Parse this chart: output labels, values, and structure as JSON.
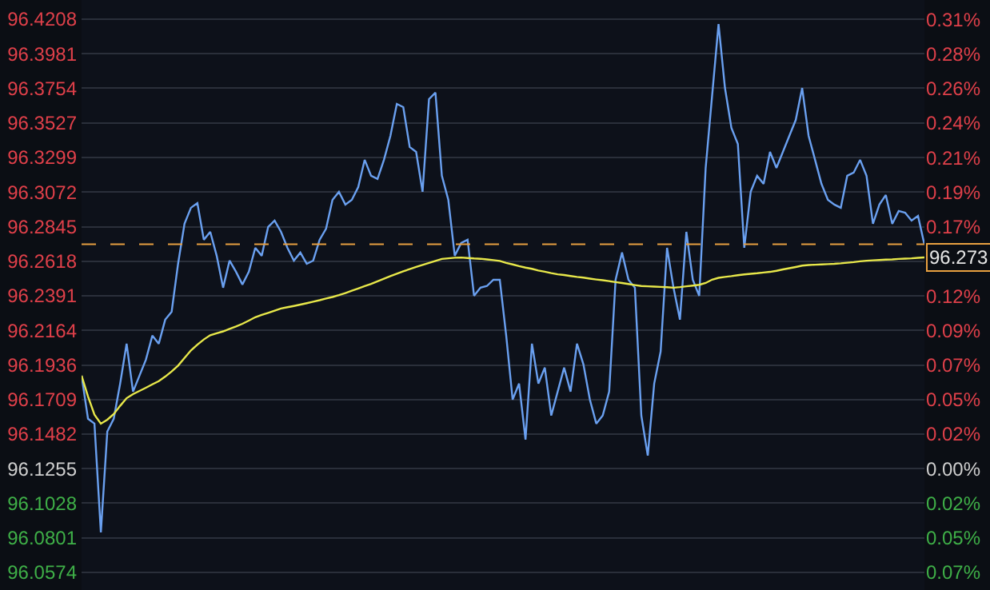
{
  "chart_data": {
    "type": "line",
    "categories": [
      null,
      null,
      null,
      null,
      null,
      null,
      null,
      null,
      null,
      null,
      null,
      null,
      null,
      null,
      null,
      null,
      null,
      null,
      null,
      null,
      null,
      null,
      null,
      null,
      null,
      null,
      null,
      null,
      null,
      null,
      null,
      null,
      null,
      null,
      null,
      null,
      null,
      null,
      null,
      null,
      null,
      null,
      null,
      null,
      null,
      null,
      null,
      null,
      null,
      null,
      null,
      null,
      null,
      null,
      null,
      null,
      null,
      null,
      null,
      null,
      null,
      null,
      null,
      null,
      null,
      null,
      null,
      null,
      null,
      null,
      null,
      null,
      null,
      null,
      null,
      null,
      null,
      null,
      null,
      null,
      null,
      null,
      null,
      null,
      null,
      null,
      null,
      null,
      null,
      null,
      null,
      null,
      null,
      null,
      null,
      null,
      null,
      null,
      null,
      null,
      null,
      null,
      null,
      null,
      null,
      null,
      null,
      null,
      null,
      null,
      null,
      null,
      null,
      null,
      null,
      null,
      null,
      null,
      null,
      null,
      null,
      null,
      null,
      null,
      null,
      null,
      null,
      null,
      null,
      null,
      null,
      null
    ],
    "series": [
      {
        "color": "#6aa0f0",
        "values": [
          96.1866,
          96.1583,
          96.1551,
          96.0837,
          96.1499,
          96.1583,
          96.1814,
          96.2076,
          96.1761,
          96.1866,
          96.1971,
          96.2129,
          96.2076,
          96.2234,
          96.2286,
          96.2601,
          96.2864,
          96.2969,
          96.3,
          96.2759,
          96.2811,
          96.2654,
          96.2444,
          96.2622,
          96.2549,
          96.2465,
          96.2549,
          96.2706,
          96.2654,
          96.2843,
          96.2885,
          96.2811,
          96.2706,
          96.2622,
          96.2675,
          96.2601,
          96.2622,
          96.2759,
          96.2832,
          96.3021,
          96.3074,
          96.299,
          96.3021,
          96.3105,
          96.3284,
          96.3179,
          96.3158,
          96.3284,
          96.3441,
          96.3651,
          96.363,
          96.3368,
          96.3336,
          96.3074,
          96.3683,
          96.3725,
          96.3179,
          96.3021,
          96.2654,
          96.2738,
          96.2759,
          96.2391,
          96.2444,
          96.2455,
          96.2496,
          96.2496,
          96.2129,
          96.1709,
          96.1814,
          96.1446,
          96.2076,
          96.1814,
          96.1919,
          96.1604,
          96.1761,
          96.1919,
          96.1761,
          96.2076,
          96.194,
          96.1709,
          96.1551,
          96.1604,
          96.1761,
          96.2496,
          96.2675,
          96.2496,
          96.2444,
          96.1604,
          96.1341,
          96.1814,
          96.2024,
          96.2706,
          96.2444,
          96.2234,
          96.2811,
          96.2496,
          96.2391,
          96.3231,
          96.3704,
          96.4176,
          96.3756,
          96.3494,
          96.3389,
          96.2706,
          96.3074,
          96.3179,
          96.3126,
          96.3336,
          96.3231,
          96.3336,
          96.3441,
          96.3546,
          96.3756,
          96.3441,
          96.3284,
          96.3126,
          96.3021,
          96.299,
          96.2969,
          96.3179,
          96.32,
          96.3284,
          96.3179,
          96.2864,
          96.299,
          96.3053,
          96.2864,
          96.2948,
          96.2937,
          96.2885,
          96.2916,
          96.2727
        ]
      },
      {
        "color": "#e8e84a",
        "values": [
          96.1866,
          96.173,
          96.161,
          96.1551,
          96.1577,
          96.1614,
          96.1668,
          96.1718,
          96.1745,
          96.1766,
          96.1787,
          96.1809,
          96.183,
          96.186,
          96.1894,
          96.1932,
          96.1982,
          96.2032,
          96.207,
          96.2104,
          96.2132,
          96.2145,
          96.2157,
          96.2173,
          96.2189,
          96.2207,
          96.2228,
          96.225,
          96.2265,
          96.2279,
          96.2293,
          96.2307,
          96.2316,
          96.2324,
          96.2333,
          96.2342,
          96.2352,
          96.2362,
          96.2373,
          96.2383,
          96.2395,
          96.2409,
          96.2424,
          96.2439,
          96.2454,
          96.2469,
          96.2486,
          96.2503,
          96.252,
          96.2536,
          96.2552,
          96.2566,
          96.258,
          96.2594,
          96.2607,
          96.262,
          96.2633,
          96.2637,
          96.2641,
          96.2642,
          96.2639,
          96.2636,
          96.2634,
          96.263,
          96.2625,
          96.262,
          96.2607,
          96.2597,
          96.2586,
          96.2576,
          96.2568,
          96.2557,
          96.2549,
          96.254,
          96.2532,
          96.2527,
          96.2521,
          96.2515,
          96.251,
          96.2504,
          96.2498,
          96.2493,
          96.2487,
          96.2481,
          96.2475,
          96.2468,
          96.2461,
          96.2455,
          96.2453,
          96.2451,
          96.2449,
          96.2447,
          96.2444,
          96.2448,
          96.2453,
          96.2458,
          96.2463,
          96.2475,
          96.2497,
          96.2509,
          96.2515,
          96.252,
          96.2526,
          96.2531,
          96.2535,
          96.2539,
          96.2544,
          96.2548,
          96.2555,
          96.2564,
          96.2572,
          96.258,
          96.2589,
          96.2593,
          96.2595,
          96.2597,
          96.2599,
          96.2601,
          96.2604,
          96.2608,
          96.2612,
          96.2617,
          96.2621,
          96.2624,
          96.2626,
          96.2628,
          96.263,
          96.2633,
          96.2635,
          96.2637,
          96.264,
          96.2643
        ]
      }
    ],
    "ylim": [
      96.0458,
      96.4334
    ],
    "yticks": [
      96.4208,
      96.3981,
      96.3754,
      96.3527,
      96.3299,
      96.3072,
      96.2845,
      96.2618,
      96.2391,
      96.2164,
      96.1936,
      96.1709,
      96.1482,
      96.1255,
      96.1028,
      96.0801,
      96.0574
    ],
    "y2lim": [
      -0.0829,
      0.3203
    ],
    "y2ticks": [
      {
        "value": 0.3071,
        "label": "0.31%"
      },
      {
        "value": 0.2835,
        "label": "0.28%"
      },
      {
        "value": 0.2598,
        "label": "0.26%"
      },
      {
        "value": 0.2362,
        "label": "0.24%"
      },
      {
        "value": 0.2126,
        "label": "0.21%"
      },
      {
        "value": 0.189,
        "label": "0.19%"
      },
      {
        "value": 0.1654,
        "label": "0.17%"
      },
      {
        "value": 0.1417,
        "label": null
      },
      {
        "value": 0.1181,
        "label": "0.12%"
      },
      {
        "value": 0.0945,
        "label": "0.09%"
      },
      {
        "value": 0.0709,
        "label": "0.07%"
      },
      {
        "value": 0.0472,
        "label": "0.05%"
      },
      {
        "value": 0.0236,
        "label": "0.02%"
      },
      {
        "value": 0,
        "label": "0.00%"
      },
      {
        "value": -0.0236,
        "label": "0.02%"
      },
      {
        "value": -0.0472,
        "label": "0.05%"
      },
      {
        "value": -0.0709,
        "label": "0.07%"
      }
    ],
    "ref_lines": [
      {
        "axis": "y",
        "value": 96.273,
        "label": "96.273",
        "color": "#e8a040",
        "line_style": "dashed"
      }
    ],
    "grid": "y",
    "marker": "none"
  }
}
